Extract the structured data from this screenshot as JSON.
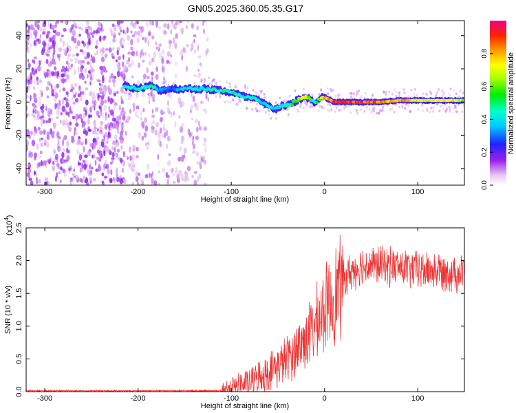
{
  "title": "GN05.2025.360.05.35.G17",
  "chart_data": [
    {
      "type": "heatmap",
      "xlabel": "Height of straight line (km)",
      "ylabel": "Frequency (Hz)",
      "xlim": [
        -320,
        150
      ],
      "ylim": [
        -50,
        49
      ],
      "xticks": [
        -300,
        -200,
        -100,
        0,
        100
      ],
      "yticks": [
        -40,
        -20,
        0,
        20,
        40
      ],
      "colorbar": {
        "label": "Normalized spectral amplitude",
        "range": [
          0,
          1
        ],
        "ticks": [
          0.0,
          0.2,
          0.4,
          0.6,
          0.8
        ],
        "tick_labels": [
          "0.0",
          "0.2",
          "0.4",
          "0.6",
          "0.8"
        ]
      },
      "noise_region_km": [
        -320,
        -125
      ],
      "dense_noise_region_km": [
        -320,
        -215
      ],
      "signal_trace": {
        "height_km": [
          -215,
          -200,
          -185,
          -178,
          -165,
          -150,
          -130,
          -110,
          -95,
          -85,
          -75,
          -65,
          -58,
          -52,
          -45,
          -38,
          -30,
          -25,
          -20,
          -15,
          -10,
          -5,
          0,
          10,
          20,
          40,
          60,
          80,
          100,
          120,
          150
        ],
        "frequency_hz": [
          10,
          8,
          10,
          7,
          8,
          8,
          8,
          7,
          5,
          3,
          2,
          -1,
          -3,
          -4,
          -2,
          -2,
          1,
          2,
          3,
          2,
          -1,
          2,
          3,
          0,
          0,
          0,
          0,
          1,
          1,
          1,
          1
        ],
        "amplitude": [
          0.45,
          0.45,
          0.5,
          0.35,
          0.3,
          0.4,
          0.45,
          0.5,
          0.5,
          0.45,
          0.45,
          0.4,
          0.45,
          0.4,
          0.4,
          0.5,
          0.6,
          0.7,
          0.8,
          0.55,
          0.5,
          0.65,
          0.8,
          0.95,
          0.95,
          0.95,
          0.85,
          0.85,
          0.75,
          0.75,
          0.7
        ]
      }
    },
    {
      "type": "line",
      "series": [
        {
          "name": "SNR",
          "color": "#ee3333"
        }
      ],
      "xlabel": "Height of straight line (km)",
      "ylabel": "SNR (10 * v/v)",
      "y_multiplier": "(x10",
      "y_multiplier_exp": "4",
      "xlim": [
        -320,
        150
      ],
      "ylim": [
        0,
        2.5
      ],
      "xticks": [
        -300,
        -200,
        -100,
        0,
        100
      ],
      "yticks": [
        0.0,
        0.5,
        1.0,
        1.5,
        2.0,
        2.5
      ],
      "ytick_labels": [
        "0.0",
        "0.5",
        "1.0",
        "1.5",
        "2.0",
        "2.5"
      ],
      "envelope": {
        "height_km": [
          -320,
          -110,
          -100,
          -80,
          -60,
          -40,
          -30,
          -20,
          -10,
          0,
          10,
          20,
          30,
          40,
          60,
          80,
          100,
          120,
          150
        ],
        "snr_x1e4": [
          0.0,
          0.01,
          0.05,
          0.15,
          0.3,
          0.5,
          0.65,
          0.8,
          1.0,
          1.25,
          1.45,
          1.7,
          1.85,
          1.93,
          1.93,
          1.9,
          1.85,
          1.85,
          1.8
        ]
      }
    }
  ]
}
